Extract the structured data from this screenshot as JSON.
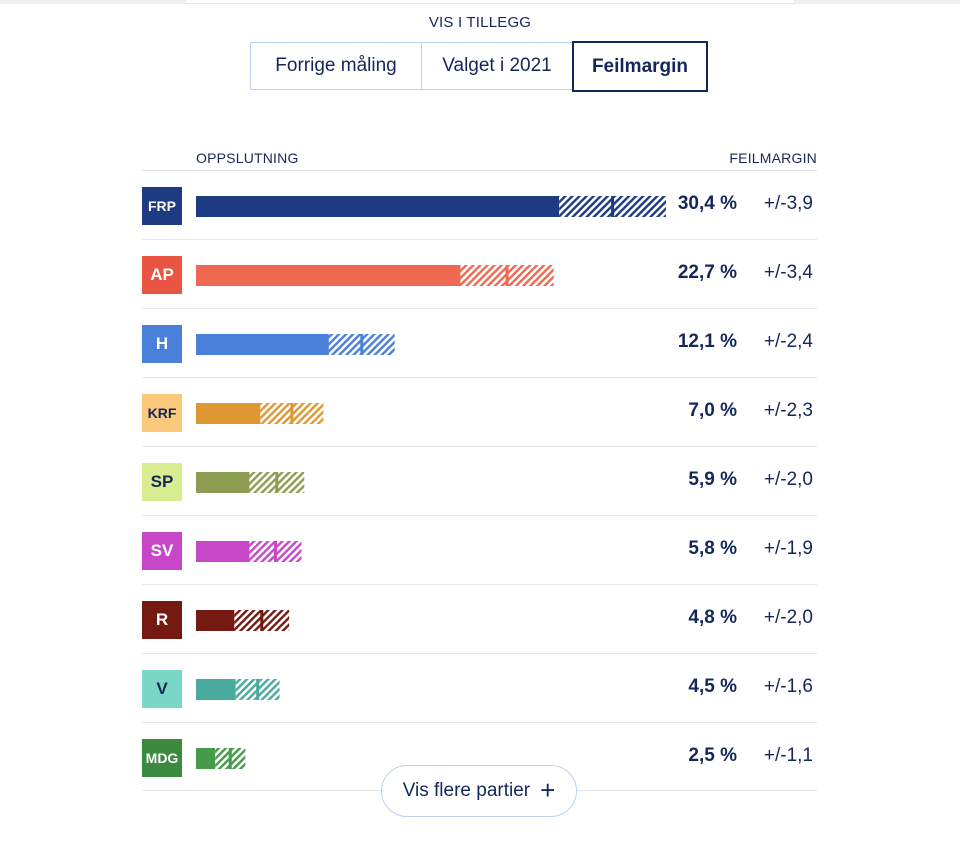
{
  "vis_label": "VIS I TILLEGG",
  "tabs": [
    {
      "label": "Forrige måling",
      "active": false
    },
    {
      "label": "Valget i 2021",
      "active": false
    },
    {
      "label": "Feilmargin",
      "active": true
    }
  ],
  "more_button": {
    "label": "Vis flere partier",
    "icon": "plus-icon"
  },
  "chart_data": {
    "type": "bar",
    "orientation": "horizontal",
    "column_headers": {
      "left": "OPPSLUTNING",
      "right": "FEILMARGIN"
    },
    "xlim": [
      0,
      34.3
    ],
    "parties": [
      {
        "code": "FRP",
        "value": 30.4,
        "value_label": "30,4 %",
        "margin": 3.9,
        "margin_label": "+/-3,9",
        "color": "#1c3b82",
        "badge_color": "#1c3b82",
        "badge_text": "#ffffff"
      },
      {
        "code": "AP",
        "value": 22.7,
        "value_label": "22,7 %",
        "margin": 3.4,
        "margin_label": "+/-3,4",
        "color": "#ef6852",
        "badge_color": "#e85543",
        "badge_text": "#ffffff"
      },
      {
        "code": "H",
        "value": 12.1,
        "value_label": "12,1 %",
        "margin": 2.4,
        "margin_label": "+/-2,4",
        "color": "#4a7fda",
        "badge_color": "#4a7fda",
        "badge_text": "#ffffff"
      },
      {
        "code": "KRF",
        "value": 7.0,
        "value_label": "7,0 %",
        "margin": 2.3,
        "margin_label": "+/-2,3",
        "color": "#df9732",
        "badge_color": "#fbc97b",
        "badge_text": "#14275a"
      },
      {
        "code": "SP",
        "value": 5.9,
        "value_label": "5,9 %",
        "margin": 2.0,
        "margin_label": "+/-2,0",
        "color": "#8c9d52",
        "badge_color": "#d9ec8f",
        "badge_text": "#14275a"
      },
      {
        "code": "SV",
        "value": 5.8,
        "value_label": "5,8 %",
        "margin": 1.9,
        "margin_label": "+/-1,9",
        "color": "#c847c8",
        "badge_color": "#c847c8",
        "badge_text": "#ffffff"
      },
      {
        "code": "R",
        "value": 4.8,
        "value_label": "4,8 %",
        "margin": 2.0,
        "margin_label": "+/-2,0",
        "color": "#751a13",
        "badge_color": "#751a13",
        "badge_text": "#ffffff"
      },
      {
        "code": "V",
        "value": 4.5,
        "value_label": "4,5 %",
        "margin": 1.6,
        "margin_label": "+/-1,6",
        "color": "#4aaa9e",
        "badge_color": "#7ad7c6",
        "badge_text": "#14275a"
      },
      {
        "code": "MDG",
        "value": 2.5,
        "value_label": "2,5 %",
        "margin": 1.1,
        "margin_label": "+/-1,1",
        "color": "#449b4a",
        "badge_color": "#3c8a40",
        "badge_text": "#ffffff"
      }
    ]
  }
}
